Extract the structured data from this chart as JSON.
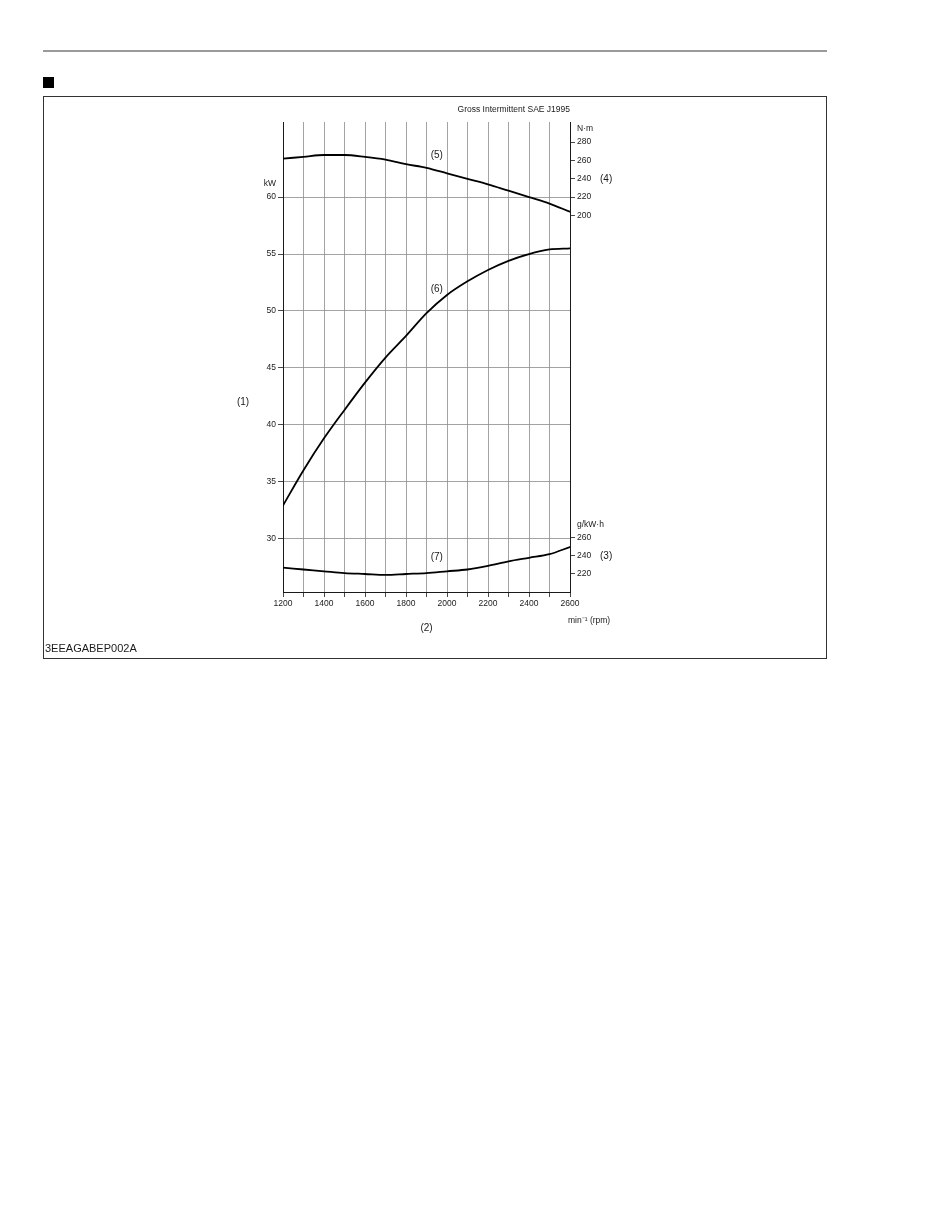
{
  "chart_data": {
    "type": "line",
    "title": "Gross Intermittent SAE J1995",
    "xlabel": "min⁻¹ (rpm)",
    "ylabel": "kW",
    "y2label": "N·m",
    "y3label": "g/kW·h",
    "x": [
      1200,
      1300,
      1400,
      1500,
      1600,
      1700,
      1800,
      1900,
      2000,
      2100,
      2200,
      2300,
      2400,
      2500,
      2600
    ],
    "series": [
      {
        "name": "(5)",
        "color": "#000000",
        "axis": "y2",
        "values": [
          262,
          264,
          266,
          266,
          264,
          261,
          256,
          252,
          246,
          240,
          234,
          227,
          220,
          213,
          204
        ]
      },
      {
        "name": "(6)",
        "color": "#000000",
        "values": [
          32.9,
          36.0,
          38.8,
          41.3,
          43.7,
          45.9,
          47.8,
          49.8,
          51.4,
          52.6,
          53.6,
          54.4,
          55.0,
          55.4,
          55.5
        ]
      },
      {
        "name": "(7)",
        "color": "#000000",
        "axis": "y3",
        "values": [
          227,
          225,
          223,
          221,
          220,
          219,
          220,
          221,
          223,
          225,
          229,
          234,
          238,
          242,
          250
        ]
      }
    ],
    "xlim": [
      1200,
      2600
    ],
    "xticks": [
      1200,
      {
        "value": 1300,
        "label": null
      },
      1400,
      {
        "value": 1500,
        "label": null
      },
      1600,
      {
        "value": 1700,
        "label": null
      },
      1800,
      {
        "value": 1900,
        "label": null
      },
      2000,
      {
        "value": 2100,
        "label": null
      },
      2200,
      {
        "value": 2300,
        "label": null
      },
      2400,
      {
        "value": 2500,
        "label": null
      },
      2600
    ],
    "ylim": [
      25.3,
      66.6
    ],
    "yticks": [
      30,
      35,
      40,
      45,
      50,
      55,
      60
    ],
    "y2lim": [
      -211,
      302
    ],
    "y2ticks": [
      200,
      220,
      240,
      260,
      280
    ],
    "y3lim": [
      200,
      722
    ],
    "y3ticks": [
      220,
      240,
      260
    ],
    "grid": true,
    "line_style": "solid",
    "annotations": [
      "(1)",
      "(2)",
      "(3)",
      "(4)",
      "3EEAGABEP002A"
    ]
  }
}
